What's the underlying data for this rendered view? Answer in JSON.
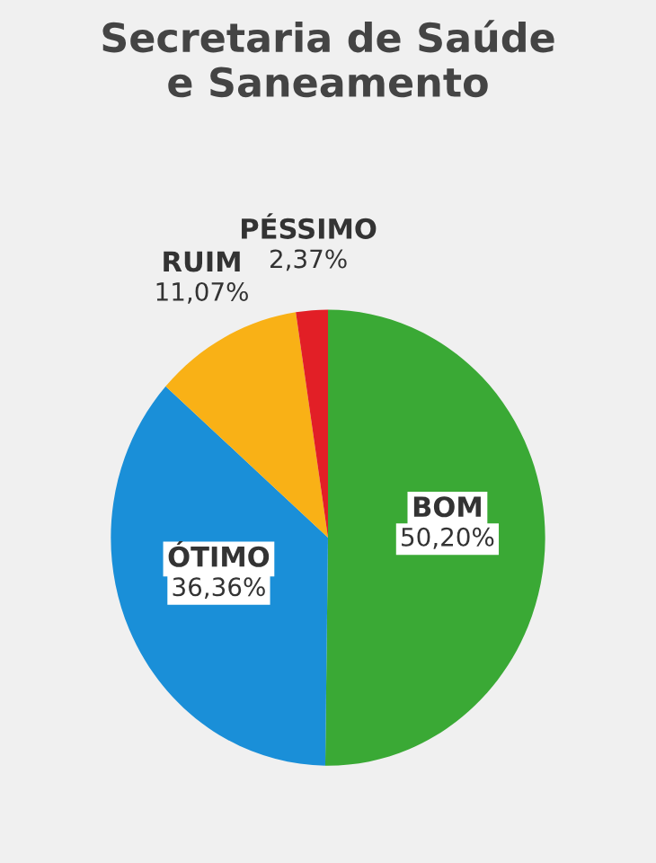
{
  "chart_data": {
    "type": "pie",
    "title": "Secretaria de Saúde\ne Saneamento",
    "categories": [
      "BOM",
      "ÓTIMO",
      "RUIM",
      "PÉSSIMO"
    ],
    "values": [
      50.2,
      36.36,
      11.07,
      2.37
    ],
    "value_labels": [
      "50,20%",
      "36,36%",
      "11,07%",
      "2,37%"
    ],
    "colors": [
      "#3aa935",
      "#1a8fd8",
      "#f9b116",
      "#e21f26"
    ],
    "legend": false
  }
}
